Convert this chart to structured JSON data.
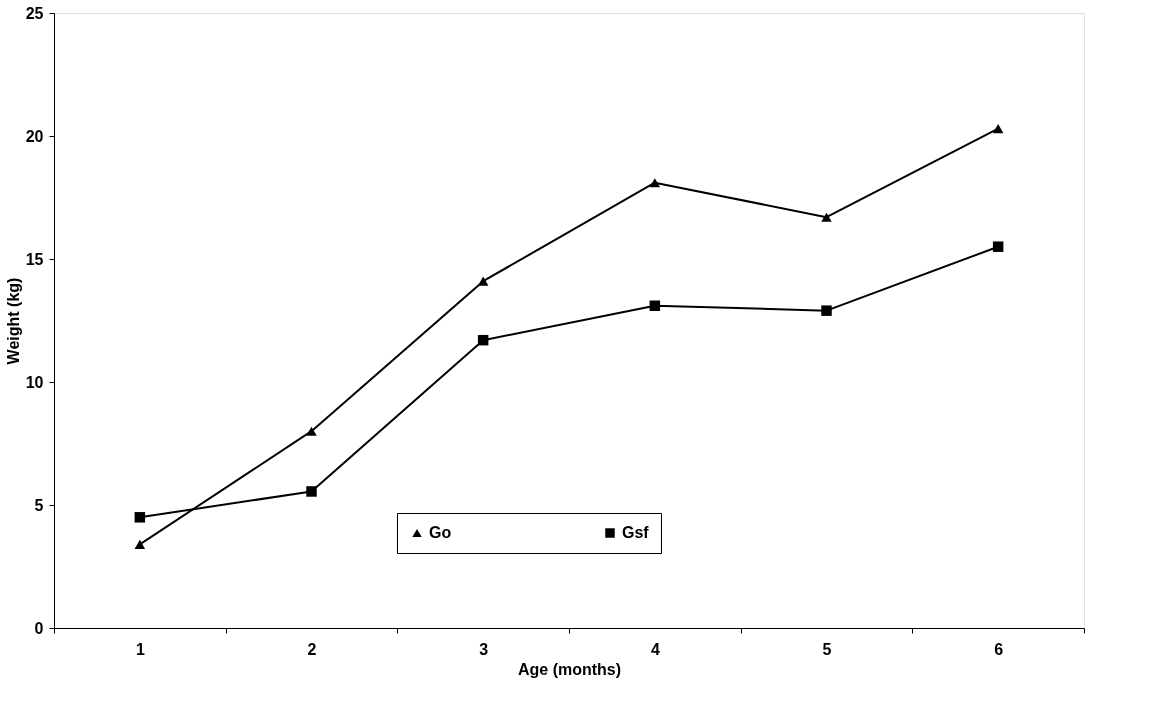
{
  "chart_data": {
    "type": "line",
    "xlabel": "Age (months)",
    "ylabel": "Weight (kg)",
    "categories": [
      "1",
      "2",
      "3",
      "4",
      "5",
      "6"
    ],
    "series": [
      {
        "name": "Go",
        "color": "#000000",
        "marker": "triangle",
        "values": [
          3.4,
          8.0,
          14.1,
          18.1,
          16.7,
          20.3
        ]
      },
      {
        "name": "Gsf",
        "color": "#000000",
        "marker": "square",
        "values": [
          4.5,
          5.55,
          11.7,
          13.1,
          12.9,
          15.5
        ]
      }
    ],
    "ylim": [
      0,
      25
    ],
    "yticks": [
      0,
      5,
      10,
      15,
      20,
      25
    ],
    "grid": false,
    "legend": "bottom",
    "line_style": "solid"
  }
}
